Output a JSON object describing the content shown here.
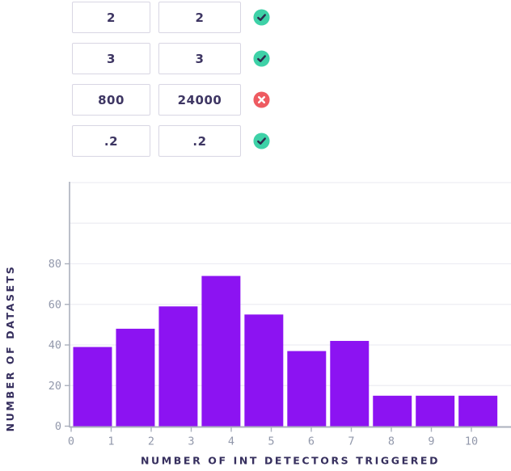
{
  "comparison_rows": {
    "rows": [
      {
        "left": "2",
        "right": "2",
        "status": "pass"
      },
      {
        "left": "3",
        "right": "3",
        "status": "pass"
      },
      {
        "left": "800",
        "right": "24000",
        "status": "fail"
      },
      {
        "left": ".2",
        "right": ".2",
        "status": "pass"
      }
    ],
    "pass_color": "#3ed1a7",
    "fail_color": "#ee5b61",
    "check_mark_color": "#2e2a4d",
    "cross_mark_color": "#ffffff"
  },
  "chart_data": {
    "type": "histogram",
    "title": "",
    "xlabel": "NUMBER OF INT DETECTORS TRIGGERED",
    "ylabel": "NUMBER OF DATASETS",
    "values": [
      39,
      48,
      59,
      74,
      55,
      37,
      42,
      15,
      15,
      15
    ],
    "bin_count": 10,
    "bin_start": 0,
    "bin_width": 1.07,
    "x_ticks": [
      0,
      1,
      2,
      3,
      4,
      5,
      6,
      7,
      8,
      9,
      10
    ],
    "y_ticks": [
      0,
      20,
      40,
      60,
      80
    ],
    "y_gridlines": [
      20,
      40,
      60,
      80,
      100,
      120
    ],
    "x_axis_max": 11,
    "y_axis_max": 120,
    "grid": true,
    "legend": false,
    "colors": {
      "bar": "#8c13f2",
      "axis": "#abb0bd",
      "grid": "#ededf3",
      "tick_label": "#9298ab",
      "axis_title": "#362f5e"
    }
  }
}
